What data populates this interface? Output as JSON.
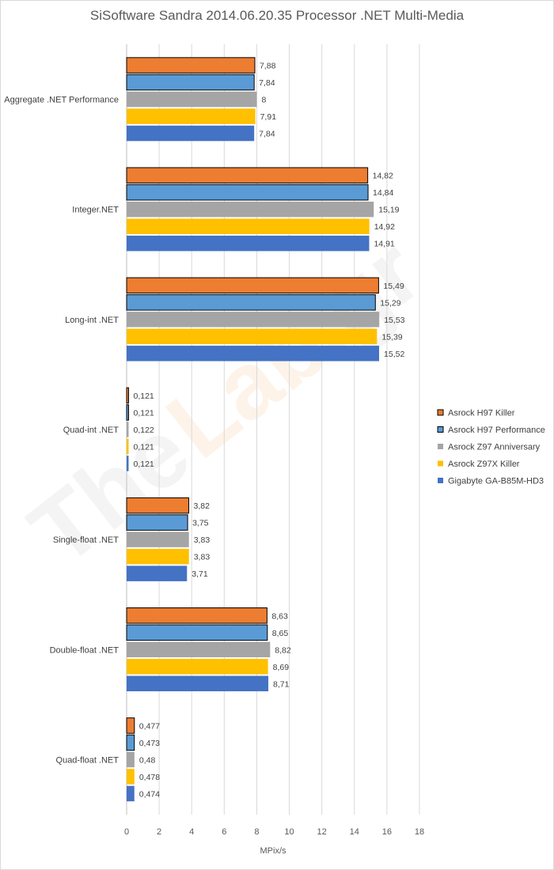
{
  "chart_data": {
    "type": "bar",
    "orientation": "horizontal",
    "title": "SiSoftware Sandra 2014.06.20.35 Processor .NET Multi-Media",
    "xlabel": "MPix/s",
    "ylabel": "",
    "xlim": [
      0,
      18
    ],
    "xticks": [
      0,
      2,
      4,
      6,
      8,
      10,
      12,
      14,
      16,
      18
    ],
    "grid": "vertical",
    "legend_position": "right",
    "categories": [
      "Aggregate .NET Performance",
      "Integer.NET",
      "Long-int .NET",
      "Quad-int .NET",
      "Single-float .NET",
      "Double-float .NET",
      "Quad-float .NET"
    ],
    "series": [
      {
        "name": "Asrock H97 Killer",
        "color": "#ED7D31",
        "outlined": true,
        "values": [
          7.88,
          14.82,
          15.49,
          0.121,
          3.82,
          8.63,
          0.477
        ],
        "labels": [
          "7,88",
          "14,82",
          "15,49",
          "0,121",
          "3,82",
          "8,63",
          "0,477"
        ]
      },
      {
        "name": "Asrock H97 Performance",
        "color": "#5B9BD5",
        "outlined": true,
        "values": [
          7.84,
          14.84,
          15.29,
          0.121,
          3.75,
          8.65,
          0.473
        ],
        "labels": [
          "7,84",
          "14,84",
          "15,29",
          "0,121",
          "3,75",
          "8,65",
          "0,473"
        ]
      },
      {
        "name": "Asrock Z97 Anniversary",
        "color": "#A5A5A5",
        "outlined": false,
        "values": [
          8,
          15.19,
          15.53,
          0.122,
          3.83,
          8.82,
          0.48
        ],
        "labels": [
          "8",
          "15,19",
          "15,53",
          "0,122",
          "3,83",
          "8,82",
          "0,48"
        ]
      },
      {
        "name": "Asrock Z97X Killer",
        "color": "#FFC000",
        "outlined": false,
        "values": [
          7.91,
          14.92,
          15.39,
          0.121,
          3.83,
          8.69,
          0.478
        ],
        "labels": [
          "7,91",
          "14,92",
          "15,39",
          "0,121",
          "3,83",
          "8,69",
          "0,478"
        ]
      },
      {
        "name": "Gigabyte GA-B85M-HD3",
        "color": "#4472C4",
        "outlined": false,
        "values": [
          7.84,
          14.91,
          15.52,
          0.121,
          3.71,
          8.71,
          0.474
        ],
        "labels": [
          "7,84",
          "14,91",
          "15,52",
          "0,121",
          "3,71",
          "8,71",
          "0,474"
        ]
      }
    ]
  },
  "watermark": {
    "part1": "The",
    "part2": "Lab",
    "part3": ".gr"
  },
  "colors": {
    "watermark_light": "#f4f4f4",
    "watermark_warm": "#fdf3e9",
    "gridline": "#d9d9d9",
    "axis": "#bfbfbf",
    "outline": "#000000"
  }
}
